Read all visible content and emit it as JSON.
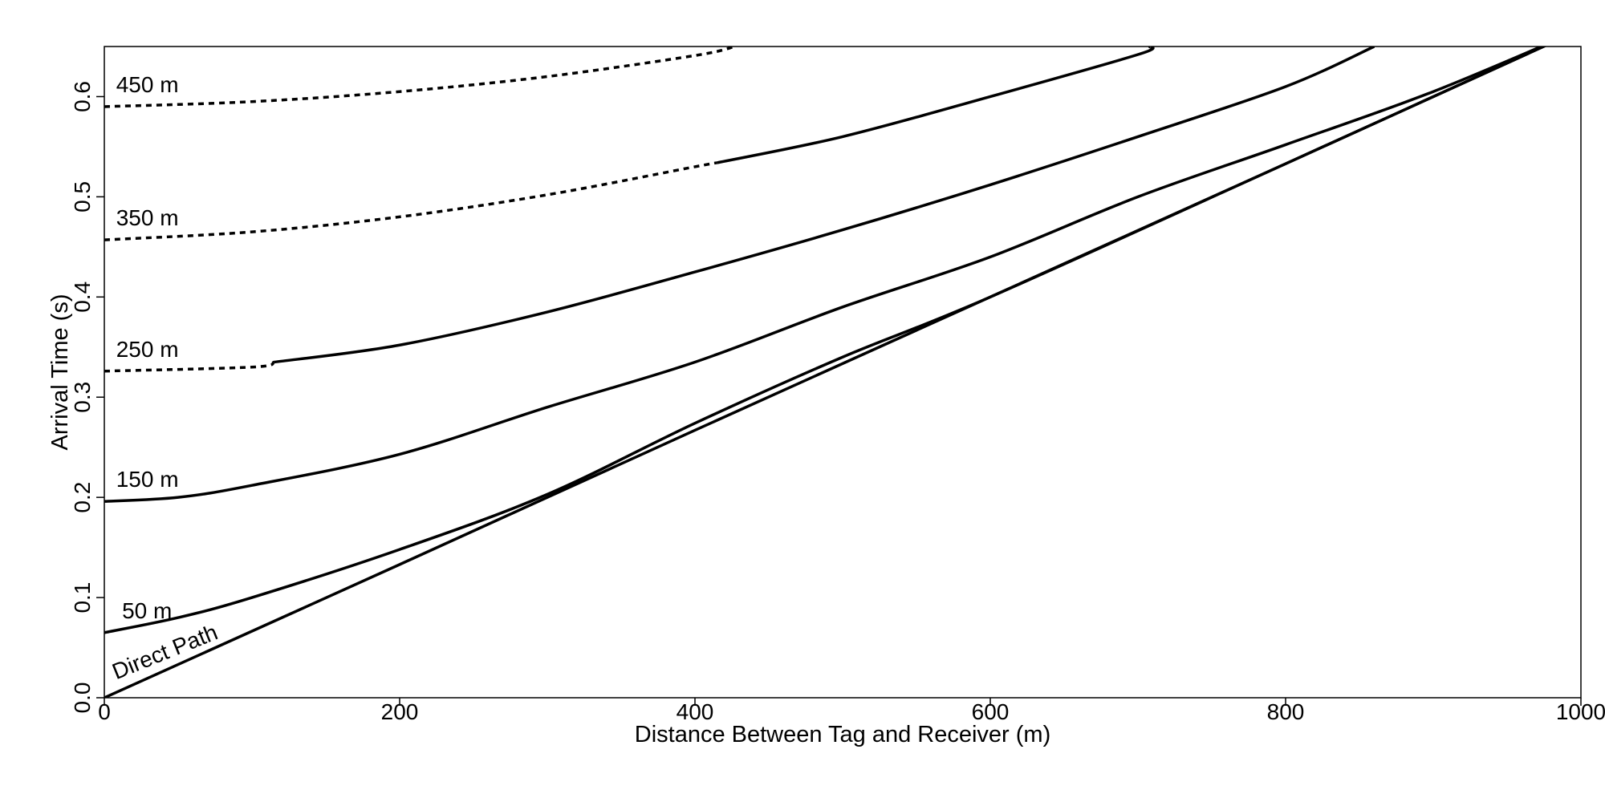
{
  "chart_data": {
    "type": "line",
    "title": "",
    "xlabel": "Distance Between Tag and Receiver (m)",
    "ylabel": "Arrival Time (s)",
    "xlim": [
      0,
      1000
    ],
    "ylim": [
      0,
      0.65
    ],
    "x_ticks": [
      0,
      200,
      400,
      600,
      800,
      1000
    ],
    "x_tick_labels": [
      "0",
      "200",
      "400",
      "600",
      "800",
      "1000"
    ],
    "y_ticks": [
      0.0,
      0.1,
      0.2,
      0.3,
      0.4,
      0.5,
      0.6
    ],
    "y_tick_labels": [
      "0.0",
      "0.1",
      "0.2",
      "0.3",
      "0.4",
      "0.5",
      "0.6"
    ],
    "grid": false,
    "legend": "none",
    "line_color": "#000000",
    "series": [
      {
        "name": "Direct Path",
        "label": "Direct Path",
        "x": [
          0,
          200,
          400,
          600,
          800,
          1000
        ],
        "y": [
          0.0,
          0.133,
          0.267,
          0.4,
          0.533,
          0.667
        ]
      },
      {
        "name": "50 m",
        "label": "50 m",
        "x": [
          0,
          50,
          100,
          200,
          300,
          400,
          500,
          600,
          800,
          1000
        ],
        "y": [
          0.065,
          0.08,
          0.1,
          0.148,
          0.203,
          0.274,
          0.34,
          0.4,
          0.533,
          0.667
        ],
        "dashed_until_x": 0
      },
      {
        "name": "150 m",
        "label": "150 m",
        "x": [
          0,
          50,
          100,
          200,
          300,
          400,
          500,
          600,
          700,
          800,
          900,
          1000
        ],
        "y": [
          0.196,
          0.2,
          0.212,
          0.243,
          0.29,
          0.335,
          0.39,
          0.44,
          0.5,
          0.552,
          0.605,
          0.667
        ],
        "dashed_until_x": 0
      },
      {
        "name": "250 m",
        "label": "250 m",
        "x": [
          0,
          100,
          115,
          200,
          300,
          400,
          500,
          600,
          700,
          800,
          860
        ],
        "y": [
          0.326,
          0.33,
          0.335,
          0.352,
          0.385,
          0.425,
          0.467,
          0.512,
          0.56,
          0.61,
          0.65
        ],
        "dashed_until_x": 115
      },
      {
        "name": "350 m",
        "label": "350 m",
        "x": [
          0,
          100,
          200,
          300,
          400,
          415,
          500,
          600,
          700,
          708
        ],
        "y": [
          0.457,
          0.465,
          0.48,
          0.502,
          0.53,
          0.534,
          0.56,
          0.6,
          0.642,
          0.65
        ],
        "dashed_until_x": 415
      },
      {
        "name": "450 m",
        "label": "450 m",
        "x": [
          0,
          100,
          200,
          300,
          400,
          427
        ],
        "y": [
          0.59,
          0.595,
          0.605,
          0.62,
          0.641,
          0.65
        ],
        "dashed_until_x": 427
      }
    ]
  }
}
